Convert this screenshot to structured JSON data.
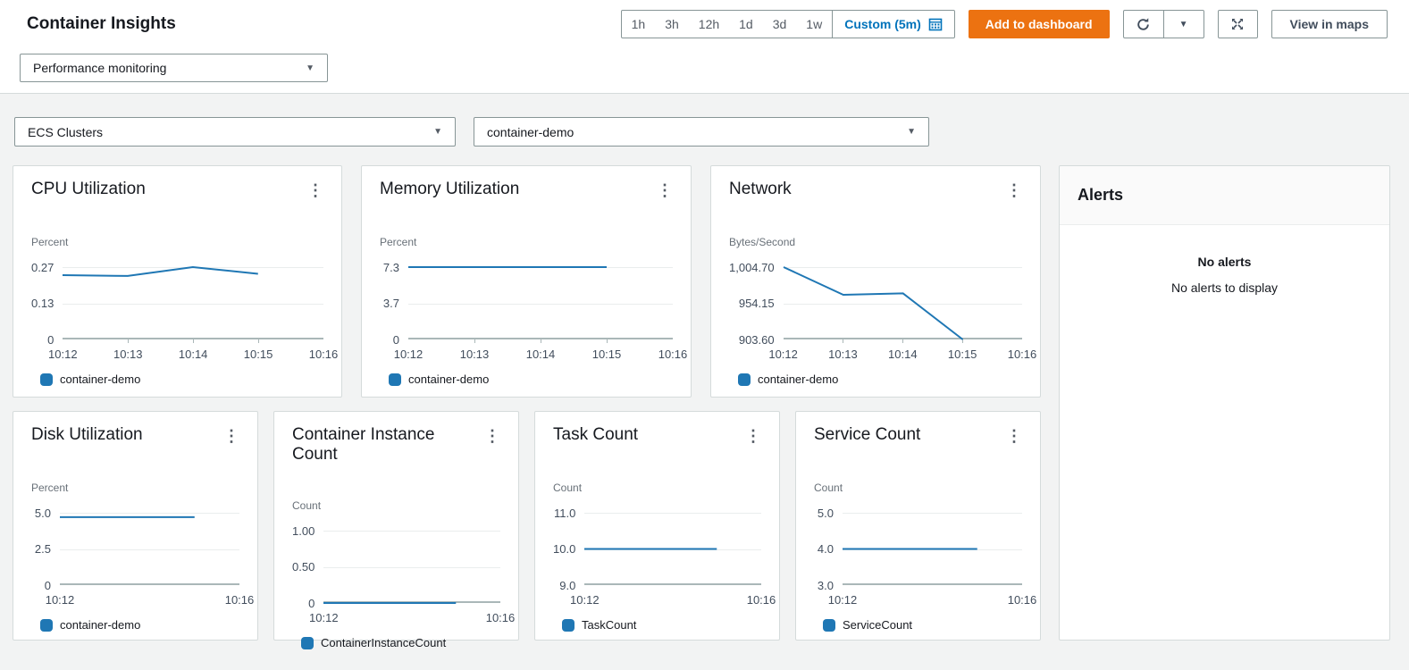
{
  "header": {
    "title": "Container Insights",
    "time_ranges": [
      "1h",
      "3h",
      "12h",
      "1d",
      "3d",
      "1w"
    ],
    "custom_range_label": "Custom (5m)",
    "add_to_dashboard_label": "Add to dashboard",
    "view_in_maps_label": "View in maps"
  },
  "controls": {
    "view_selector": "Performance monitoring",
    "resource_type_selector": "ECS Clusters",
    "resource_selector": "container-demo"
  },
  "alerts_panel": {
    "title": "Alerts",
    "empty_title": "No alerts",
    "empty_message": "No alerts to display"
  },
  "icons": {
    "kebab": "⋮",
    "caret": "▼"
  },
  "colors": {
    "accent_orange": "#ec7211",
    "link_blue": "#0073bb",
    "series_blue": "#1f77b4"
  },
  "chart_data": [
    {
      "type": "line",
      "title": "CPU Utilization",
      "ylabel": "Percent",
      "x_ticks": [
        "10:12",
        "10:13",
        "10:14",
        "10:15",
        "10:16"
      ],
      "y_tick_labels": [
        "0.27",
        "0.13",
        "0"
      ],
      "ylim": [
        0,
        0.27
      ],
      "legend_position": "bottom",
      "series": [
        {
          "name": "container-demo",
          "x": [
            "10:12",
            "10:13",
            "10:14",
            "10:15"
          ],
          "values": [
            0.24,
            0.237,
            0.27,
            0.245
          ]
        }
      ]
    },
    {
      "type": "line",
      "title": "Memory Utilization",
      "ylabel": "Percent",
      "x_ticks": [
        "10:12",
        "10:13",
        "10:14",
        "10:15",
        "10:16"
      ],
      "y_tick_labels": [
        "7.3",
        "3.7",
        "0"
      ],
      "ylim": [
        0,
        7.3
      ],
      "legend_position": "bottom",
      "series": [
        {
          "name": "container-demo",
          "x": [
            "10:12",
            "10:13",
            "10:14",
            "10:15"
          ],
          "values": [
            7.3,
            7.3,
            7.3,
            7.3
          ]
        }
      ]
    },
    {
      "type": "line",
      "title": "Network",
      "ylabel": "Bytes/Second",
      "x_ticks": [
        "10:12",
        "10:13",
        "10:14",
        "10:15",
        "10:16"
      ],
      "y_tick_labels": [
        "1,004.70",
        "954.15",
        "903.60"
      ],
      "ylim": [
        903.6,
        1004.7
      ],
      "legend_position": "bottom",
      "series": [
        {
          "name": "container-demo",
          "x": [
            "10:12",
            "10:13",
            "10:14",
            "10:15"
          ],
          "values": [
            1004.7,
            966,
            968,
            903.6
          ]
        }
      ]
    },
    {
      "type": "line",
      "title": "Disk Utilization",
      "ylabel": "Percent",
      "x_ticks": [
        "10:12",
        "10:16"
      ],
      "y_tick_labels": [
        "5.0",
        "2.5",
        "0"
      ],
      "ylim": [
        0,
        5.0
      ],
      "legend_position": "bottom",
      "series": [
        {
          "name": "container-demo",
          "x": [
            "10:12",
            "10:13",
            "10:14",
            "10:15"
          ],
          "values": [
            4.7,
            4.7,
            4.7,
            4.7
          ]
        }
      ]
    },
    {
      "type": "line",
      "title": "Container Instance Count",
      "ylabel": "Count",
      "x_ticks": [
        "10:12",
        "10:16"
      ],
      "y_tick_labels": [
        "1.00",
        "0.50",
        "0"
      ],
      "ylim": [
        0,
        1.0
      ],
      "legend_position": "bottom",
      "series": [
        {
          "name": "ContainerInstanceCount",
          "x": [
            "10:12",
            "10:13",
            "10:14",
            "10:15"
          ],
          "values": [
            0,
            0,
            0,
            0
          ]
        }
      ]
    },
    {
      "type": "line",
      "title": "Task Count",
      "ylabel": "Count",
      "x_ticks": [
        "10:12",
        "10:16"
      ],
      "y_tick_labels": [
        "11.0",
        "10.0",
        "9.0"
      ],
      "ylim": [
        9.0,
        11.0
      ],
      "legend_position": "bottom",
      "series": [
        {
          "name": "TaskCount",
          "x": [
            "10:12",
            "10:13",
            "10:14",
            "10:15"
          ],
          "values": [
            10,
            10,
            10,
            10
          ]
        }
      ]
    },
    {
      "type": "line",
      "title": "Service Count",
      "ylabel": "Count",
      "x_ticks": [
        "10:12",
        "10:16"
      ],
      "y_tick_labels": [
        "5.0",
        "4.0",
        "3.0"
      ],
      "ylim": [
        3.0,
        5.0
      ],
      "legend_position": "bottom",
      "series": [
        {
          "name": "ServiceCount",
          "x": [
            "10:12",
            "10:13",
            "10:14",
            "10:15"
          ],
          "values": [
            4,
            4,
            4,
            4
          ]
        }
      ]
    }
  ]
}
